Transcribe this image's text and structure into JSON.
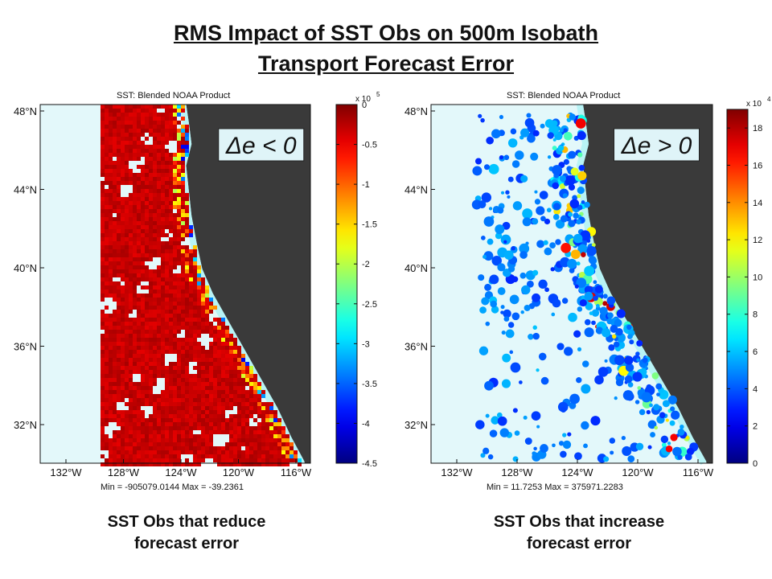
{
  "title": {
    "line1": "RMS Impact of SST Obs on 500m Isobath ",
    "line2": "Transport Forecast Error"
  },
  "colors": {
    "ocean": "#e3f8fa",
    "land": "#3a3a3a",
    "coast": "#b8f3f5"
  },
  "maps": [
    {
      "id": "left",
      "map_title": "SST: Blended NOAA Product",
      "formula": "Δe < 0",
      "stats": "Min = -905079.0144 Max = -39.2361",
      "caption_line1": "SST Obs that reduce",
      "caption_line2": "forecast error",
      "lat_ticks": [
        "48°N",
        "44°N",
        "40°N",
        "36°N",
        "32°N"
      ],
      "lon_ticks": [
        "132°W",
        "128°W",
        "124°W",
        "120°W",
        "116°W"
      ],
      "colorbar": {
        "exponent": "x 10",
        "exponent_power": "5",
        "range": [
          -4.5,
          0
        ],
        "ticks": [
          "0",
          "-0.5",
          "-1",
          "-1.5",
          "-2",
          "-2.5",
          "-3",
          "-3.5",
          "-4",
          "-4.5"
        ]
      }
    },
    {
      "id": "right",
      "map_title": "SST: Blended NOAA Product",
      "formula": "Δe > 0",
      "stats": "Min = 11.7253 Max = 375971.2283",
      "caption_line1": "SST Obs that increase",
      "caption_line2": "forecast error",
      "lat_ticks": [
        "48°N",
        "44°N",
        "40°N",
        "36°N",
        "32°N"
      ],
      "lon_ticks": [
        "132°W",
        "128°W",
        "124°W",
        "120°W",
        "116°W"
      ],
      "colorbar": {
        "exponent": "x 10",
        "exponent_power": "4",
        "range": [
          0,
          19
        ],
        "ticks": [
          "18",
          "16",
          "14",
          "12",
          "10",
          "8",
          "6",
          "4",
          "2",
          "0"
        ]
      }
    }
  ]
}
